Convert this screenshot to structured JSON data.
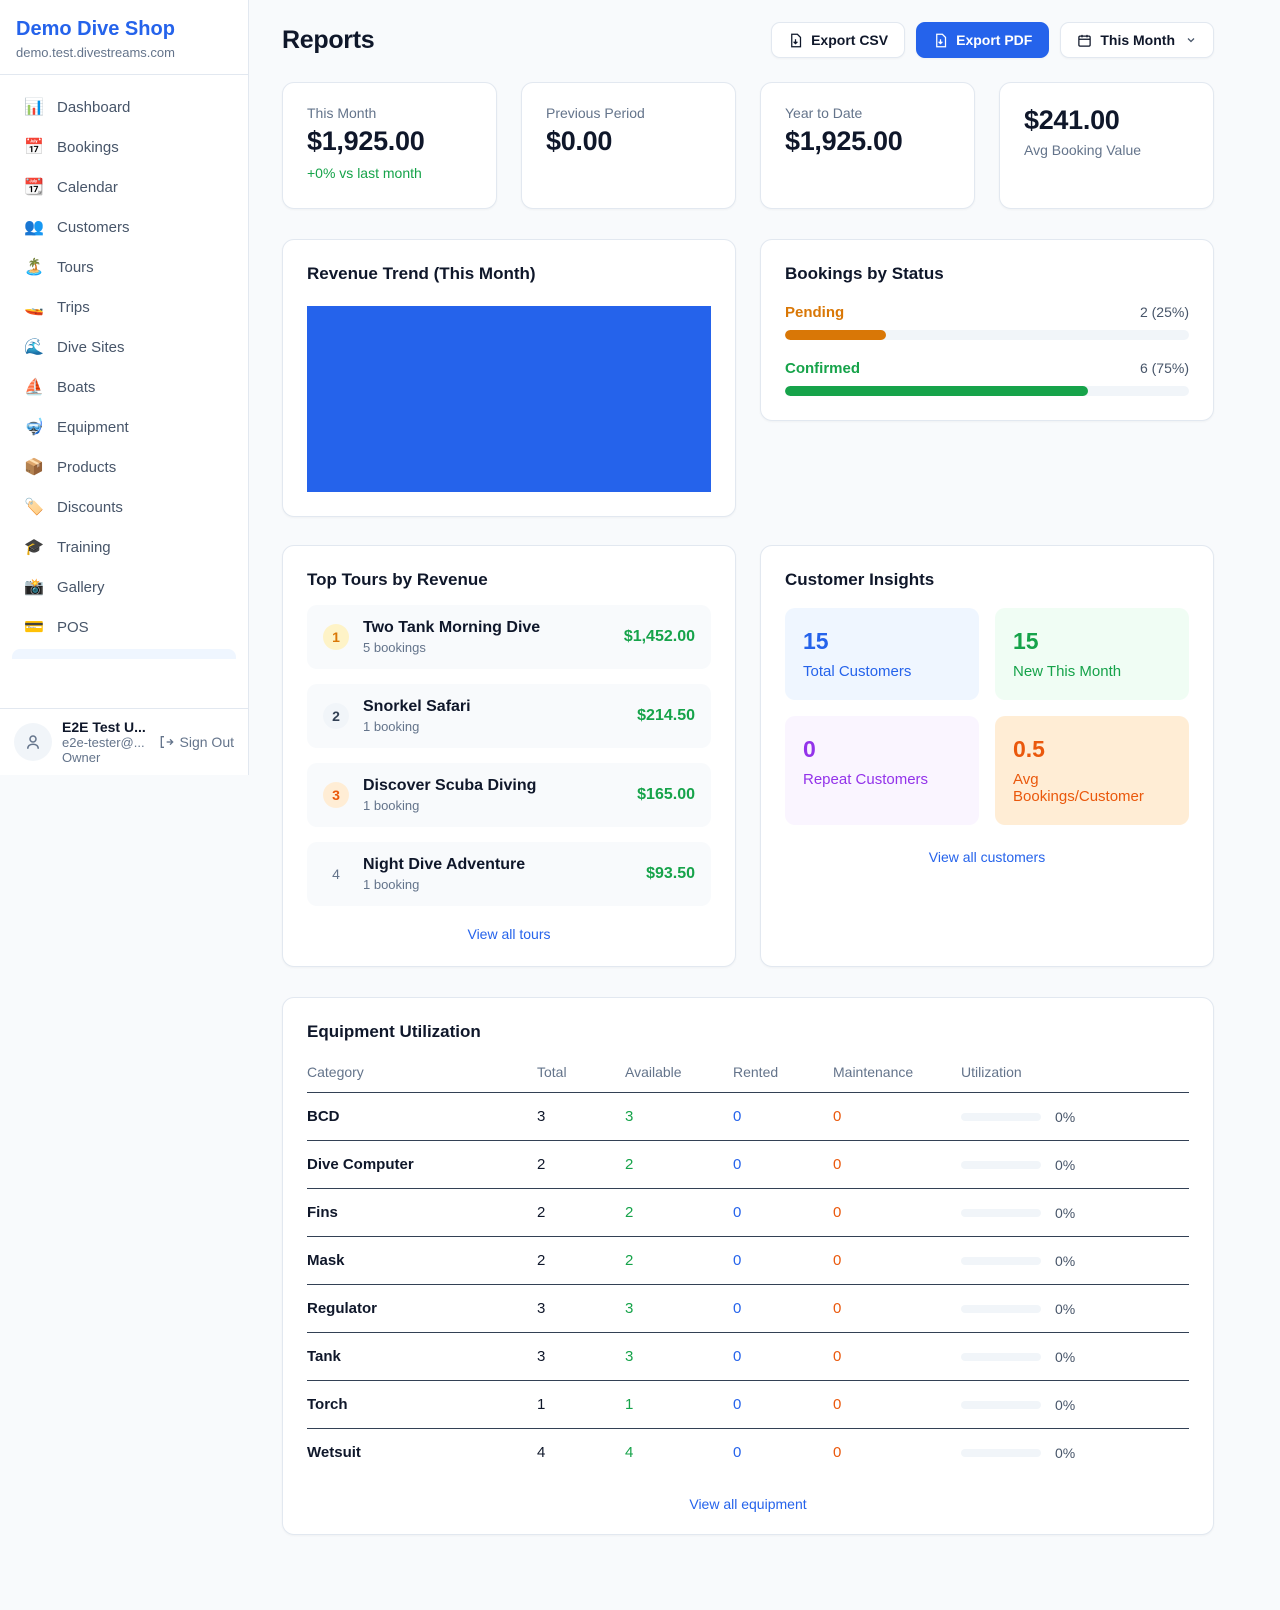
{
  "app": {
    "name": "Demo Dive Shop",
    "domain": "demo.test.divestreams.com"
  },
  "sidebar": {
    "items": [
      {
        "icon": "📊",
        "label": "Dashboard"
      },
      {
        "icon": "📅",
        "label": "Bookings"
      },
      {
        "icon": "📆",
        "label": "Calendar"
      },
      {
        "icon": "👥",
        "label": "Customers"
      },
      {
        "icon": "🏝️",
        "label": "Tours"
      },
      {
        "icon": "🚤",
        "label": "Trips"
      },
      {
        "icon": "🌊",
        "label": "Dive Sites"
      },
      {
        "icon": "⛵",
        "label": "Boats"
      },
      {
        "icon": "🤿",
        "label": "Equipment"
      },
      {
        "icon": "📦",
        "label": "Products"
      },
      {
        "icon": "🏷️",
        "label": "Discounts"
      },
      {
        "icon": "🎓",
        "label": "Training"
      },
      {
        "icon": "📸",
        "label": "Gallery"
      },
      {
        "icon": "💳",
        "label": "POS"
      }
    ],
    "user": {
      "name": "E2E Test U...",
      "email": "e2e-tester@...",
      "role": "Owner",
      "sign_out": "Sign Out"
    }
  },
  "header": {
    "title": "Reports",
    "export_csv": "Export CSV",
    "export_pdf": "Export PDF",
    "period": "This Month"
  },
  "stats": [
    {
      "label": "This Month",
      "value": "$1,925.00",
      "delta": "+0% vs last month"
    },
    {
      "label": "Previous Period",
      "value": "$0.00"
    },
    {
      "label": "Year to Date",
      "value": "$1,925.00"
    },
    {
      "label": "Avg Booking Value",
      "value": "$241.00"
    }
  ],
  "revenue_trend": {
    "title": "Revenue Trend (This Month)",
    "bar_color": "#2563eb"
  },
  "chart_data": {
    "type": "bar",
    "title": "Revenue Trend (This Month)",
    "categories": [
      "This Month"
    ],
    "values": [
      1925
    ],
    "note": "rendered as a single solid full-width blue bar, no axes or labels visible"
  },
  "bookings_by_status": {
    "title": "Bookings by Status",
    "rows": [
      {
        "label": "Pending",
        "count": "2 (25%)",
        "pct": 25
      },
      {
        "label": "Confirmed",
        "count": "6 (75%)",
        "pct": 75
      }
    ]
  },
  "top_tours": {
    "title": "Top Tours by Revenue",
    "view_all": "View all tours",
    "items": [
      {
        "rank": "1",
        "name": "Two Tank Morning Dive",
        "sub": "5 bookings",
        "amount": "$1,452.00"
      },
      {
        "rank": "2",
        "name": "Snorkel Safari",
        "sub": "1 booking",
        "amount": "$214.50"
      },
      {
        "rank": "3",
        "name": "Discover Scuba Diving",
        "sub": "1 booking",
        "amount": "$165.00"
      },
      {
        "rank": "4",
        "name": "Night Dive Adventure",
        "sub": "1 booking",
        "amount": "$93.50"
      }
    ]
  },
  "customer_insights": {
    "title": "Customer Insights",
    "view_all": "View all customers",
    "tiles": [
      {
        "value": "15",
        "label": "Total Customers"
      },
      {
        "value": "15",
        "label": "New This Month"
      },
      {
        "value": "0",
        "label": "Repeat Customers"
      },
      {
        "value": "0.5",
        "label": "Avg Bookings/Customer"
      }
    ]
  },
  "equipment": {
    "title": "Equipment Utilization",
    "view_all": "View all equipment",
    "columns": [
      "Category",
      "Total",
      "Available",
      "Rented",
      "Maintenance",
      "Utilization"
    ],
    "rows": [
      {
        "category": "BCD",
        "total": "3",
        "available": "3",
        "rented": "0",
        "maintenance": "0",
        "utilization": "0%"
      },
      {
        "category": "Dive Computer",
        "total": "2",
        "available": "2",
        "rented": "0",
        "maintenance": "0",
        "utilization": "0%"
      },
      {
        "category": "Fins",
        "total": "2",
        "available": "2",
        "rented": "0",
        "maintenance": "0",
        "utilization": "0%"
      },
      {
        "category": "Mask",
        "total": "2",
        "available": "2",
        "rented": "0",
        "maintenance": "0",
        "utilization": "0%"
      },
      {
        "category": "Regulator",
        "total": "3",
        "available": "3",
        "rented": "0",
        "maintenance": "0",
        "utilization": "0%"
      },
      {
        "category": "Tank",
        "total": "3",
        "available": "3",
        "rented": "0",
        "maintenance": "0",
        "utilization": "0%"
      },
      {
        "category": "Torch",
        "total": "1",
        "available": "1",
        "rented": "0",
        "maintenance": "0",
        "utilization": "0%"
      },
      {
        "category": "Wetsuit",
        "total": "4",
        "available": "4",
        "rented": "0",
        "maintenance": "0",
        "utilization": "0%"
      }
    ]
  },
  "colors": {
    "accent_blue": "#2563eb",
    "green": "#16a34a",
    "pending_orange": "#d97706",
    "maintenance_orange": "#ea580c",
    "purple": "#9333ea"
  }
}
